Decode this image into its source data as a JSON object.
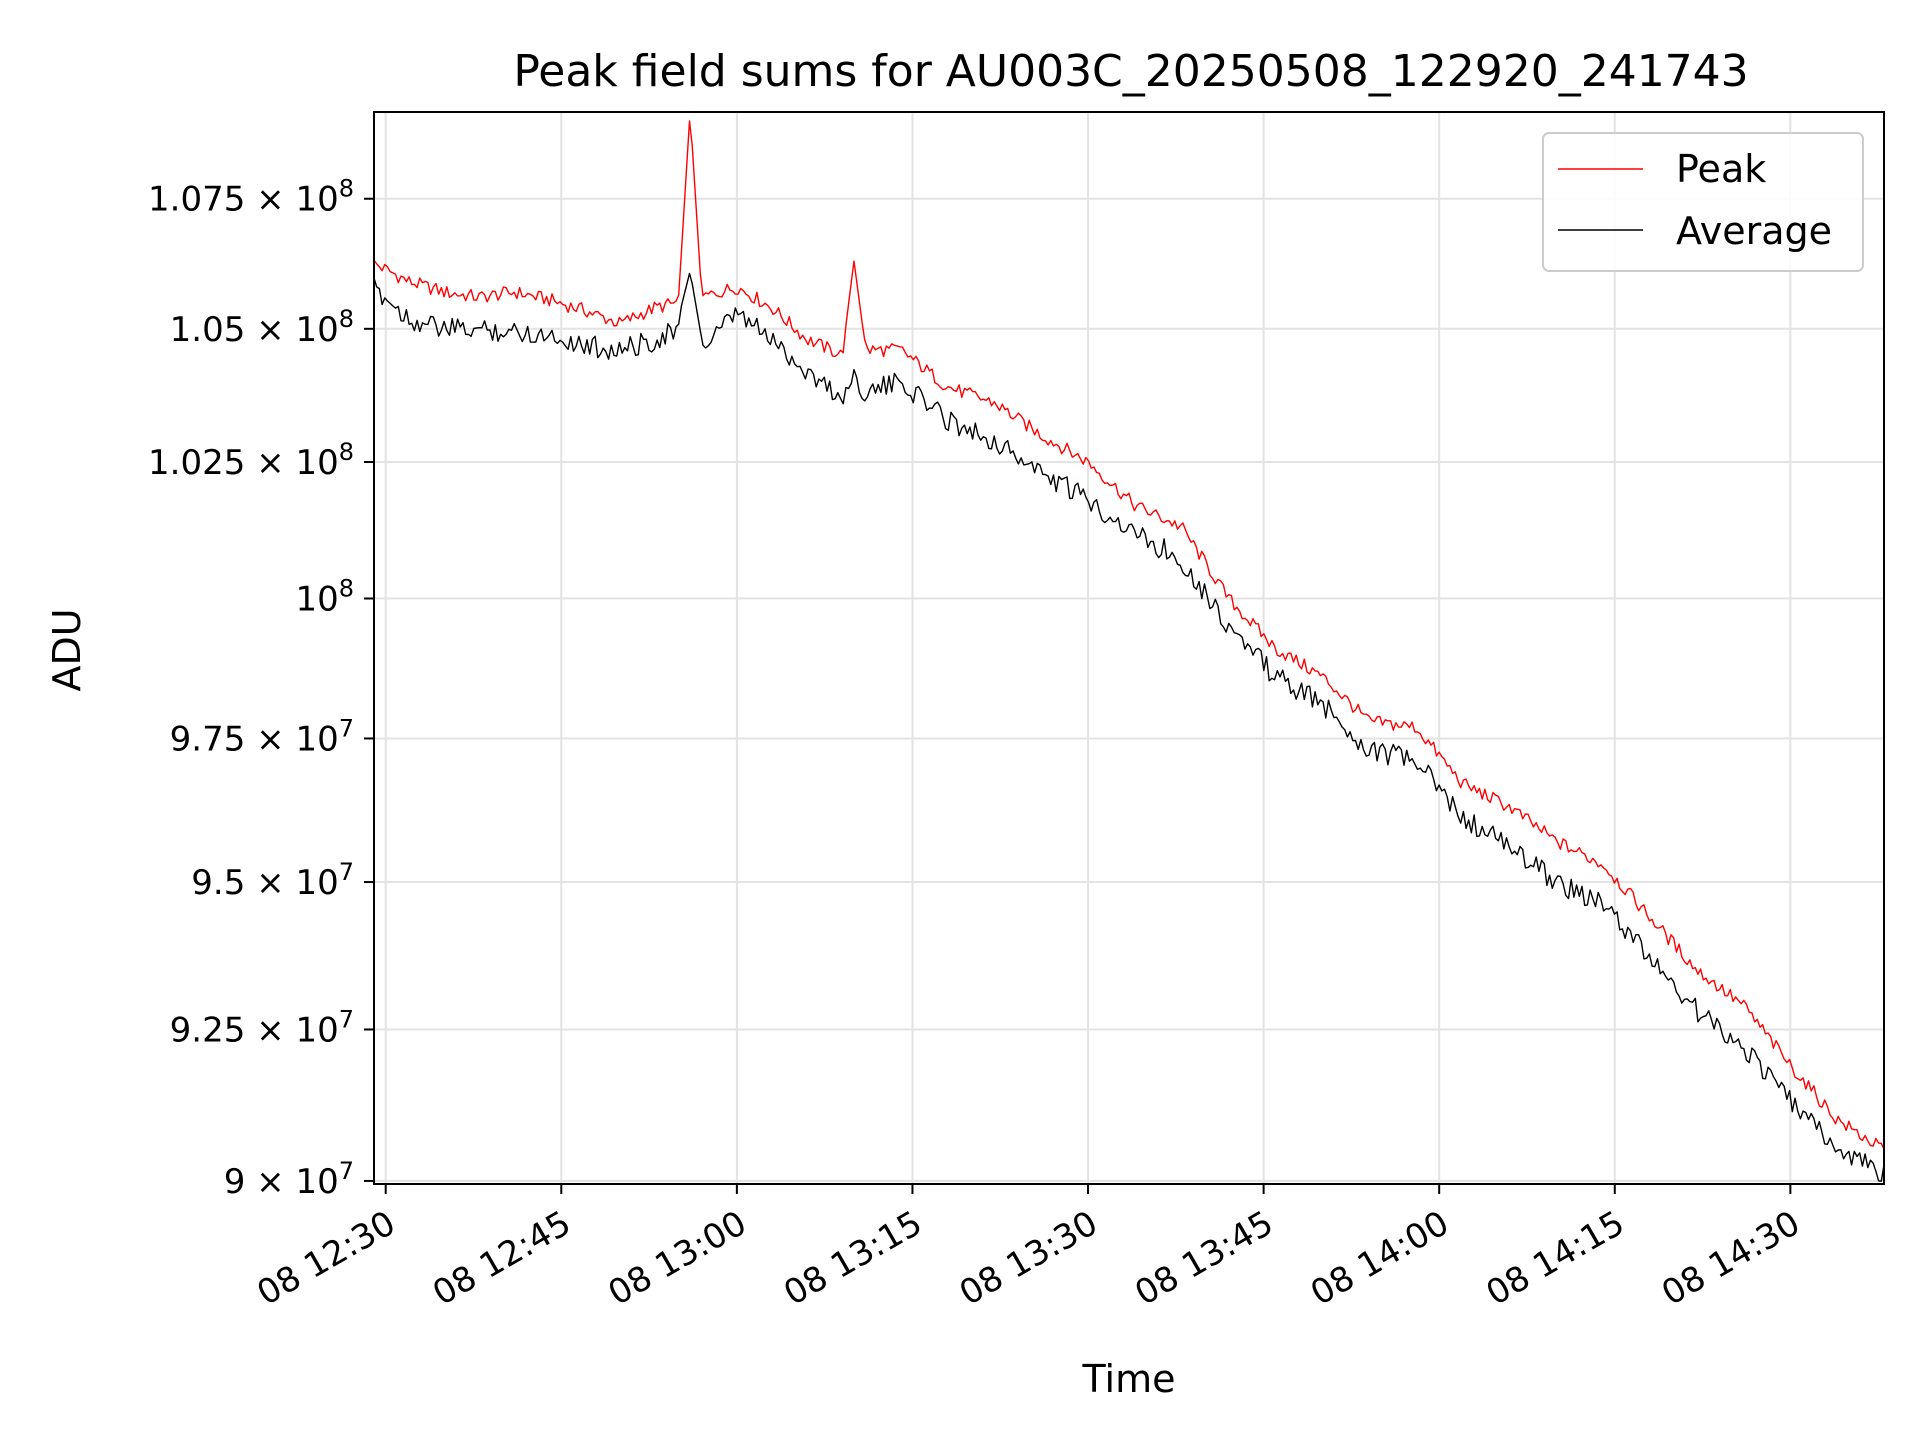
{
  "chart_data": {
    "type": "line",
    "title": "Peak field sums for AU003C_20250508_122920_241743",
    "xlabel": "Time",
    "ylabel": "ADU",
    "x_axis": {
      "start": "2025-05-08 12:29",
      "end": "2025-05-08 14:38",
      "ticks": [
        {
          "time": "2025-05-08 12:30",
          "label": "08 12:30"
        },
        {
          "time": "2025-05-08 12:45",
          "label": "08 12:45"
        },
        {
          "time": "2025-05-08 13:00",
          "label": "08 13:00"
        },
        {
          "time": "2025-05-08 13:15",
          "label": "08 13:15"
        },
        {
          "time": "2025-05-08 13:30",
          "label": "08 13:30"
        },
        {
          "time": "2025-05-08 13:45",
          "label": "08 13:45"
        },
        {
          "time": "2025-05-08 14:00",
          "label": "08 14:00"
        },
        {
          "time": "2025-05-08 14:15",
          "label": "08 14:15"
        },
        {
          "time": "2025-05-08 14:30",
          "label": "08 14:30"
        }
      ]
    },
    "y_axis": {
      "scale": "log",
      "range": [
        89950000,
        109200000
      ],
      "ticks": [
        {
          "value": 90000000,
          "mantissa": "9",
          "exponent": "7"
        },
        {
          "value": 92500000,
          "mantissa": "9.25",
          "exponent": "7"
        },
        {
          "value": 95000000,
          "mantissa": "9.5",
          "exponent": "7"
        },
        {
          "value": 97500000,
          "mantissa": "9.75",
          "exponent": "7"
        },
        {
          "value": 100000000,
          "mantissa": "",
          "exponent": "8"
        },
        {
          "value": 102500000,
          "mantissa": "1.025",
          "exponent": "8"
        },
        {
          "value": 105000000,
          "mantissa": "1.05",
          "exponent": "8"
        },
        {
          "value": 107500000,
          "mantissa": "1.075",
          "exponent": "8"
        }
      ]
    },
    "grid": true,
    "legend": "top-right",
    "series": [
      {
        "name": "Peak",
        "color": "#ff0000",
        "points": [
          [
            "2025-05-08 12:29",
            106250000
          ],
          [
            "2025-05-08 12:32",
            105900000
          ],
          [
            "2025-05-08 12:35",
            105700000
          ],
          [
            "2025-05-08 12:38",
            105600000
          ],
          [
            "2025-05-08 12:41",
            105700000
          ],
          [
            "2025-05-08 12:44",
            105550000
          ],
          [
            "2025-05-08 12:47",
            105350000
          ],
          [
            "2025-05-08 12:50",
            105100000
          ],
          [
            "2025-05-08 12:53",
            105400000
          ],
          [
            "2025-05-08 12:55",
            105500000
          ],
          [
            "2025-05-08 12:56",
            109200000
          ],
          [
            "2025-05-08 12:57",
            105600000
          ],
          [
            "2025-05-08 13:00",
            105800000
          ],
          [
            "2025-05-08 13:03",
            105400000
          ],
          [
            "2025-05-08 13:06",
            104800000
          ],
          [
            "2025-05-08 13:09",
            104500000
          ],
          [
            "2025-05-08 13:10",
            106300000
          ],
          [
            "2025-05-08 13:11",
            104600000
          ],
          [
            "2025-05-08 13:14",
            104600000
          ],
          [
            "2025-05-08 13:18",
            103900000
          ],
          [
            "2025-05-08 13:22",
            103600000
          ],
          [
            "2025-05-08 13:26",
            103000000
          ],
          [
            "2025-05-08 13:30",
            102500000
          ],
          [
            "2025-05-08 13:34",
            101700000
          ],
          [
            "2025-05-08 13:38",
            101300000
          ],
          [
            "2025-05-08 13:42",
            100000000
          ],
          [
            "2025-05-08 13:46",
            99100000
          ],
          [
            "2025-05-08 13:50",
            98600000
          ],
          [
            "2025-05-08 13:54",
            97800000
          ],
          [
            "2025-05-08 13:58",
            97700000
          ],
          [
            "2025-05-08 14:02",
            96700000
          ],
          [
            "2025-05-08 14:06",
            96300000
          ],
          [
            "2025-05-08 14:10",
            95700000
          ],
          [
            "2025-05-08 14:14",
            95300000
          ],
          [
            "2025-05-08 14:18",
            94400000
          ],
          [
            "2025-05-08 14:22",
            93500000
          ],
          [
            "2025-05-08 14:26",
            92900000
          ],
          [
            "2025-05-08 14:30",
            91900000
          ],
          [
            "2025-05-08 14:34",
            91000000
          ],
          [
            "2025-05-08 14:38",
            90500000
          ]
        ]
      },
      {
        "name": "Average",
        "color": "#000000",
        "points": [
          [
            "2025-05-08 12:29",
            106000000
          ],
          [
            "2025-05-08 12:32",
            105400000
          ],
          [
            "2025-05-08 12:35",
            105200000
          ],
          [
            "2025-05-08 12:38",
            105200000
          ],
          [
            "2025-05-08 12:41",
            105150000
          ],
          [
            "2025-05-08 12:44",
            105100000
          ],
          [
            "2025-05-08 12:47",
            104900000
          ],
          [
            "2025-05-08 12:50",
            104800000
          ],
          [
            "2025-05-08 12:53",
            105000000
          ],
          [
            "2025-05-08 12:55",
            105200000
          ],
          [
            "2025-05-08 12:56",
            106100000
          ],
          [
            "2025-05-08 12:57",
            104800000
          ],
          [
            "2025-05-08 13:00",
            105500000
          ],
          [
            "2025-05-08 13:03",
            105000000
          ],
          [
            "2025-05-08 13:06",
            104400000
          ],
          [
            "2025-05-08 13:09",
            103900000
          ],
          [
            "2025-05-08 13:10",
            104300000
          ],
          [
            "2025-05-08 13:11",
            104000000
          ],
          [
            "2025-05-08 13:14",
            104200000
          ],
          [
            "2025-05-08 13:18",
            103500000
          ],
          [
            "2025-05-08 13:22",
            103100000
          ],
          [
            "2025-05-08 13:26",
            102500000
          ],
          [
            "2025-05-08 13:30",
            102000000
          ],
          [
            "2025-05-08 13:34",
            101400000
          ],
          [
            "2025-05-08 13:38",
            100900000
          ],
          [
            "2025-05-08 13:42",
            99700000
          ],
          [
            "2025-05-08 13:46",
            98800000
          ],
          [
            "2025-05-08 13:50",
            98300000
          ],
          [
            "2025-05-08 13:54",
            97500000
          ],
          [
            "2025-05-08 13:58",
            97300000
          ],
          [
            "2025-05-08 14:02",
            96300000
          ],
          [
            "2025-05-08 14:06",
            95800000
          ],
          [
            "2025-05-08 14:10",
            95200000
          ],
          [
            "2025-05-08 14:14",
            94800000
          ],
          [
            "2025-05-08 14:18",
            93900000
          ],
          [
            "2025-05-08 14:22",
            93000000
          ],
          [
            "2025-05-08 14:26",
            92400000
          ],
          [
            "2025-05-08 14:30",
            91500000
          ],
          [
            "2025-05-08 14:34",
            90700000
          ],
          [
            "2025-05-08 14:38",
            90300000
          ]
        ]
      }
    ]
  }
}
